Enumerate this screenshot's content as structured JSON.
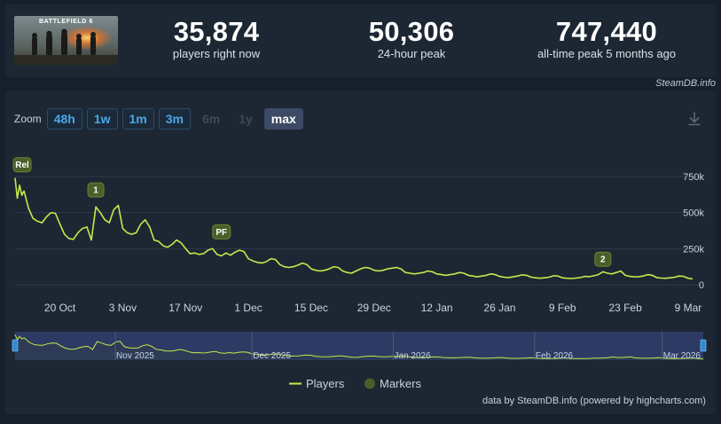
{
  "game": {
    "thumb_text": "BATTLEFIELD 6"
  },
  "stats": [
    {
      "value": "35,874",
      "label": "players right now"
    },
    {
      "value": "50,306",
      "label": "24-hour peak"
    },
    {
      "value": "747,440",
      "label": "all-time peak 5 months ago"
    }
  ],
  "credit_top": "SteamDB.info",
  "zoom": {
    "label": "Zoom",
    "buttons": [
      {
        "label": "48h",
        "state": "enabled"
      },
      {
        "label": "1w",
        "state": "enabled"
      },
      {
        "label": "1m",
        "state": "enabled"
      },
      {
        "label": "3m",
        "state": "enabled"
      },
      {
        "label": "6m",
        "state": "disabled"
      },
      {
        "label": "1y",
        "state": "disabled"
      },
      {
        "label": "max",
        "state": "active"
      }
    ]
  },
  "legend": {
    "players": "Players",
    "markers": "Markers"
  },
  "footer_credit": "data by SteamDB.info (powered by highcharts.com)",
  "colors": {
    "line": "#c6e84a",
    "marker_fill": "#4a5e2a",
    "navigator_fill": "#3b4d8c",
    "background": "#1d2733",
    "page_bg": "#16202d",
    "accent": "#4aa8e8"
  },
  "icons": {
    "download": "download-icon"
  },
  "chart_data": {
    "type": "line",
    "title": "",
    "xlabel": "",
    "ylabel": "",
    "ylim": [
      0,
      750000
    ],
    "y_ticks": [
      {
        "value": 0,
        "label": "0"
      },
      {
        "value": 250000,
        "label": "250k"
      },
      {
        "value": 500000,
        "label": "500k"
      },
      {
        "value": 750000,
        "label": "750k"
      }
    ],
    "xlim": [
      "2025-10-10",
      "2026-03-10"
    ],
    "x_ticks": [
      {
        "date": "2025-10-20",
        "label": "20 Oct"
      },
      {
        "date": "2025-11-03",
        "label": "3 Nov"
      },
      {
        "date": "2025-11-17",
        "label": "17 Nov"
      },
      {
        "date": "2025-12-01",
        "label": "1 Dec"
      },
      {
        "date": "2025-12-15",
        "label": "15 Dec"
      },
      {
        "date": "2025-12-29",
        "label": "29 Dec"
      },
      {
        "date": "2026-01-12",
        "label": "12 Jan"
      },
      {
        "date": "2026-01-26",
        "label": "26 Jan"
      },
      {
        "date": "2026-02-09",
        "label": "9 Feb"
      },
      {
        "date": "2026-02-23",
        "label": "23 Feb"
      },
      {
        "date": "2026-03-09",
        "label": "9 Mar"
      }
    ],
    "navigator_labels": [
      {
        "date": "2025-11-01",
        "label": "Nov 2025"
      },
      {
        "date": "2025-12-01",
        "label": "Dec 2025"
      },
      {
        "date": "2026-01-01",
        "label": "Jan 2026"
      },
      {
        "date": "2026-02-01",
        "label": "Feb 2026"
      },
      {
        "date": "2026-03-01",
        "label": "Mar 2026"
      }
    ],
    "markers": [
      {
        "date": "2025-10-10",
        "label": "Rel",
        "value": 715000
      },
      {
        "date": "2025-10-28",
        "label": "1",
        "value": 540000
      },
      {
        "date": "2025-11-25",
        "label": "PF",
        "value": 250000
      },
      {
        "date": "2026-02-18",
        "label": "2",
        "value": 60000
      }
    ],
    "series": [
      {
        "name": "Players",
        "points": [
          [
            "2025-10-10",
            740000
          ],
          [
            "2025-10-10T12",
            600000
          ],
          [
            "2025-10-11",
            690000
          ],
          [
            "2025-10-11T12",
            620000
          ],
          [
            "2025-10-12",
            650000
          ],
          [
            "2025-10-13",
            530000
          ],
          [
            "2025-10-14",
            460000
          ],
          [
            "2025-10-15",
            440000
          ],
          [
            "2025-10-16",
            430000
          ],
          [
            "2025-10-17",
            470000
          ],
          [
            "2025-10-18",
            500000
          ],
          [
            "2025-10-19",
            495000
          ],
          [
            "2025-10-20",
            420000
          ],
          [
            "2025-10-21",
            350000
          ],
          [
            "2025-10-22",
            320000
          ],
          [
            "2025-10-23",
            315000
          ],
          [
            "2025-10-24",
            360000
          ],
          [
            "2025-10-25",
            390000
          ],
          [
            "2025-10-26",
            400000
          ],
          [
            "2025-10-27",
            310000
          ],
          [
            "2025-10-28",
            540000
          ],
          [
            "2025-10-29",
            500000
          ],
          [
            "2025-10-30",
            450000
          ],
          [
            "2025-10-31",
            430000
          ],
          [
            "2025-11-01",
            520000
          ],
          [
            "2025-11-02",
            550000
          ],
          [
            "2025-11-03",
            390000
          ],
          [
            "2025-11-04",
            360000
          ],
          [
            "2025-11-05",
            350000
          ],
          [
            "2025-11-06",
            360000
          ],
          [
            "2025-11-07",
            420000
          ],
          [
            "2025-11-08",
            450000
          ],
          [
            "2025-11-09",
            400000
          ],
          [
            "2025-11-10",
            310000
          ],
          [
            "2025-11-11",
            300000
          ],
          [
            "2025-11-12",
            270000
          ],
          [
            "2025-11-13",
            260000
          ],
          [
            "2025-11-14",
            280000
          ],
          [
            "2025-11-15",
            310000
          ],
          [
            "2025-11-16",
            290000
          ],
          [
            "2025-11-17",
            250000
          ],
          [
            "2025-11-18",
            215000
          ],
          [
            "2025-11-19",
            220000
          ],
          [
            "2025-11-20",
            210000
          ],
          [
            "2025-11-21",
            215000
          ],
          [
            "2025-11-22",
            240000
          ],
          [
            "2025-11-23",
            250000
          ],
          [
            "2025-11-24",
            210000
          ],
          [
            "2025-11-25",
            200000
          ],
          [
            "2025-11-26",
            220000
          ],
          [
            "2025-11-27",
            205000
          ],
          [
            "2025-11-28",
            225000
          ],
          [
            "2025-11-29",
            240000
          ],
          [
            "2025-11-30",
            230000
          ],
          [
            "2025-12-01",
            180000
          ],
          [
            "2025-12-02",
            165000
          ],
          [
            "2025-12-03",
            155000
          ],
          [
            "2025-12-04",
            150000
          ],
          [
            "2025-12-05",
            160000
          ],
          [
            "2025-12-06",
            180000
          ],
          [
            "2025-12-07",
            175000
          ],
          [
            "2025-12-08",
            140000
          ],
          [
            "2025-12-09",
            125000
          ],
          [
            "2025-12-10",
            120000
          ],
          [
            "2025-12-11",
            125000
          ],
          [
            "2025-12-12",
            135000
          ],
          [
            "2025-12-13",
            150000
          ],
          [
            "2025-12-14",
            140000
          ],
          [
            "2025-12-15",
            110000
          ],
          [
            "2025-12-16",
            100000
          ],
          [
            "2025-12-17",
            95000
          ],
          [
            "2025-12-18",
            100000
          ],
          [
            "2025-12-19",
            110000
          ],
          [
            "2025-12-20",
            125000
          ],
          [
            "2025-12-21",
            120000
          ],
          [
            "2025-12-22",
            95000
          ],
          [
            "2025-12-23",
            85000
          ],
          [
            "2025-12-24",
            80000
          ],
          [
            "2025-12-25",
            95000
          ],
          [
            "2025-12-26",
            110000
          ],
          [
            "2025-12-27",
            120000
          ],
          [
            "2025-12-28",
            115000
          ],
          [
            "2025-12-29",
            100000
          ],
          [
            "2025-12-30",
            95000
          ],
          [
            "2025-12-31",
            100000
          ],
          [
            "2026-01-01",
            110000
          ],
          [
            "2026-01-02",
            115000
          ],
          [
            "2026-01-03",
            120000
          ],
          [
            "2026-01-04",
            110000
          ],
          [
            "2026-01-05",
            85000
          ],
          [
            "2026-01-06",
            80000
          ],
          [
            "2026-01-07",
            75000
          ],
          [
            "2026-01-08",
            80000
          ],
          [
            "2026-01-09",
            85000
          ],
          [
            "2026-01-10",
            95000
          ],
          [
            "2026-01-11",
            90000
          ],
          [
            "2026-01-12",
            75000
          ],
          [
            "2026-01-13",
            70000
          ],
          [
            "2026-01-14",
            65000
          ],
          [
            "2026-01-15",
            70000
          ],
          [
            "2026-01-16",
            75000
          ],
          [
            "2026-01-17",
            85000
          ],
          [
            "2026-01-18",
            80000
          ],
          [
            "2026-01-19",
            65000
          ],
          [
            "2026-01-20",
            60000
          ],
          [
            "2026-01-21",
            55000
          ],
          [
            "2026-01-22",
            60000
          ],
          [
            "2026-01-23",
            65000
          ],
          [
            "2026-01-24",
            75000
          ],
          [
            "2026-01-25",
            70000
          ],
          [
            "2026-01-26",
            58000
          ],
          [
            "2026-01-27",
            52000
          ],
          [
            "2026-01-28",
            50000
          ],
          [
            "2026-01-29",
            55000
          ],
          [
            "2026-01-30",
            60000
          ],
          [
            "2026-01-31",
            68000
          ],
          [
            "2026-02-01",
            65000
          ],
          [
            "2026-02-02",
            52000
          ],
          [
            "2026-02-03",
            48000
          ],
          [
            "2026-02-04",
            45000
          ],
          [
            "2026-02-05",
            48000
          ],
          [
            "2026-02-06",
            52000
          ],
          [
            "2026-02-07",
            62000
          ],
          [
            "2026-02-08",
            60000
          ],
          [
            "2026-02-09",
            48000
          ],
          [
            "2026-02-10",
            45000
          ],
          [
            "2026-02-11",
            43000
          ],
          [
            "2026-02-12",
            46000
          ],
          [
            "2026-02-13",
            50000
          ],
          [
            "2026-02-14",
            58000
          ],
          [
            "2026-02-15",
            56000
          ],
          [
            "2026-02-16",
            62000
          ],
          [
            "2026-02-17",
            70000
          ],
          [
            "2026-02-18",
            90000
          ],
          [
            "2026-02-19",
            80000
          ],
          [
            "2026-02-20",
            75000
          ],
          [
            "2026-02-21",
            85000
          ],
          [
            "2026-02-22",
            95000
          ],
          [
            "2026-02-23",
            65000
          ],
          [
            "2026-02-24",
            58000
          ],
          [
            "2026-02-25",
            55000
          ],
          [
            "2026-02-26",
            56000
          ],
          [
            "2026-02-27",
            60000
          ],
          [
            "2026-02-28",
            70000
          ],
          [
            "2026-03-01",
            65000
          ],
          [
            "2026-03-02",
            50000
          ],
          [
            "2026-03-03",
            46000
          ],
          [
            "2026-03-04",
            45000
          ],
          [
            "2026-03-05",
            48000
          ],
          [
            "2026-03-06",
            52000
          ],
          [
            "2026-03-07",
            60000
          ],
          [
            "2026-03-08",
            58000
          ],
          [
            "2026-03-09",
            45000
          ],
          [
            "2026-03-10",
            40000
          ]
        ]
      }
    ]
  }
}
